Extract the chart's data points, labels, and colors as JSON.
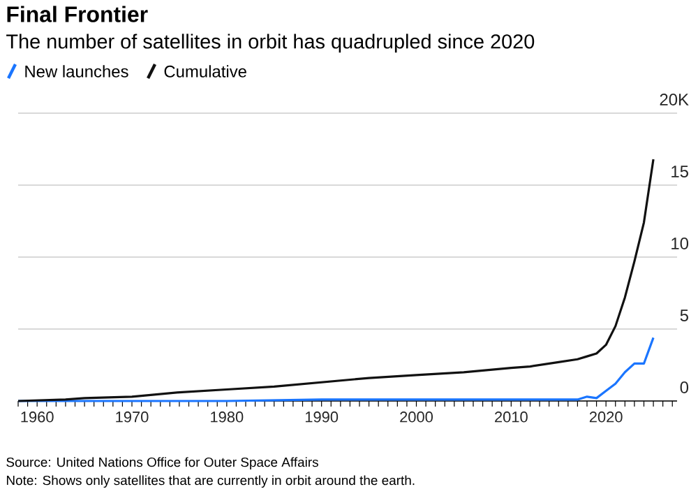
{
  "chart_data": {
    "type": "line",
    "title": "Final Frontier",
    "subtitle": "The number of satellites in orbit has quadrupled since 2020",
    "annotations": [
      "Source: United Nations Office for Outer Space Affairs",
      "Note: Shows only satellites that are currently in orbit around the earth."
    ],
    "series": [
      {
        "name": "New launches",
        "color": "#1a75ff",
        "x": [
          1958,
          1970,
          1980,
          1990,
          2000,
          2010,
          2016,
          2017,
          2018,
          2019,
          2020,
          2021,
          2022,
          2023,
          2024,
          2025
        ],
        "values": [
          0,
          0,
          0,
          0.1,
          0.1,
          0.1,
          0.1,
          0.1,
          0.3,
          0.2,
          0.7,
          1.2,
          2.0,
          2.6,
          2.6,
          4.4
        ]
      },
      {
        "name": "Cumulative",
        "color": "#111111",
        "x": [
          1958,
          1963,
          1965,
          1970,
          1975,
          1980,
          1985,
          1990,
          1995,
          2000,
          2005,
          2010,
          2012,
          2015,
          2017,
          2018,
          2019,
          2020,
          2021,
          2022,
          2023,
          2024,
          2025
        ],
        "values": [
          0,
          0.1,
          0.2,
          0.3,
          0.6,
          0.8,
          1.0,
          1.3,
          1.6,
          1.8,
          2.0,
          2.3,
          2.4,
          2.7,
          2.9,
          3.1,
          3.3,
          3.9,
          5.2,
          7.2,
          9.7,
          12.4,
          16.8
        ]
      }
    ],
    "xlim": [
      1958,
      2027.5
    ],
    "ylim": [
      0,
      20
    ],
    "xticks": [
      {
        "value": 1958,
        "label": null
      },
      {
        "value": 1959,
        "label": null
      },
      1960,
      {
        "value": 1961,
        "label": null
      },
      {
        "value": 1962,
        "label": null
      },
      {
        "value": 1963,
        "label": null
      },
      {
        "value": 1964,
        "label": null
      },
      {
        "value": 1965,
        "label": null
      },
      {
        "value": 1966,
        "label": null
      },
      {
        "value": 1967,
        "label": null
      },
      {
        "value": 1968,
        "label": null
      },
      {
        "value": 1969,
        "label": null
      },
      1970,
      {
        "value": 1971,
        "label": null
      },
      {
        "value": 1972,
        "label": null
      },
      {
        "value": 1973,
        "label": null
      },
      {
        "value": 1974,
        "label": null
      },
      {
        "value": 1975,
        "label": null
      },
      {
        "value": 1976,
        "label": null
      },
      {
        "value": 1977,
        "label": null
      },
      {
        "value": 1978,
        "label": null
      },
      {
        "value": 1979,
        "label": null
      },
      1980,
      {
        "value": 1981,
        "label": null
      },
      {
        "value": 1982,
        "label": null
      },
      {
        "value": 1983,
        "label": null
      },
      {
        "value": 1984,
        "label": null
      },
      {
        "value": 1985,
        "label": null
      },
      {
        "value": 1986,
        "label": null
      },
      {
        "value": 1987,
        "label": null
      },
      {
        "value": 1988,
        "label": null
      },
      {
        "value": 1989,
        "label": null
      },
      1990,
      {
        "value": 1991,
        "label": null
      },
      {
        "value": 1992,
        "label": null
      },
      {
        "value": 1993,
        "label": null
      },
      {
        "value": 1994,
        "label": null
      },
      {
        "value": 1995,
        "label": null
      },
      {
        "value": 1996,
        "label": null
      },
      {
        "value": 1997,
        "label": null
      },
      {
        "value": 1998,
        "label": null
      },
      {
        "value": 1999,
        "label": null
      },
      2000,
      {
        "value": 2001,
        "label": null
      },
      {
        "value": 2002,
        "label": null
      },
      {
        "value": 2003,
        "label": null
      },
      {
        "value": 2004,
        "label": null
      },
      {
        "value": 2005,
        "label": null
      },
      {
        "value": 2006,
        "label": null
      },
      {
        "value": 2007,
        "label": null
      },
      {
        "value": 2008,
        "label": null
      },
      {
        "value": 2009,
        "label": null
      },
      2010,
      {
        "value": 2011,
        "label": null
      },
      {
        "value": 2012,
        "label": null
      },
      {
        "value": 2013,
        "label": null
      },
      {
        "value": 2014,
        "label": null
      },
      {
        "value": 2015,
        "label": null
      },
      {
        "value": 2016,
        "label": null
      },
      {
        "value": 2017,
        "label": null
      },
      {
        "value": 2018,
        "label": null
      },
      {
        "value": 2019,
        "label": null
      },
      2020,
      {
        "value": 2021,
        "label": null
      },
      {
        "value": 2022,
        "label": null
      },
      {
        "value": 2023,
        "label": null
      },
      {
        "value": 2024,
        "label": null
      },
      {
        "value": 2025,
        "label": null
      },
      {
        "value": 2026,
        "label": null
      },
      {
        "value": 2027,
        "label": null
      }
    ],
    "yticks": [
      0,
      5,
      10,
      15,
      {
        "value": 20,
        "label": "20K"
      }
    ],
    "grid": "y",
    "legend": "top left",
    "marker": "none",
    "line_style": "solid"
  }
}
